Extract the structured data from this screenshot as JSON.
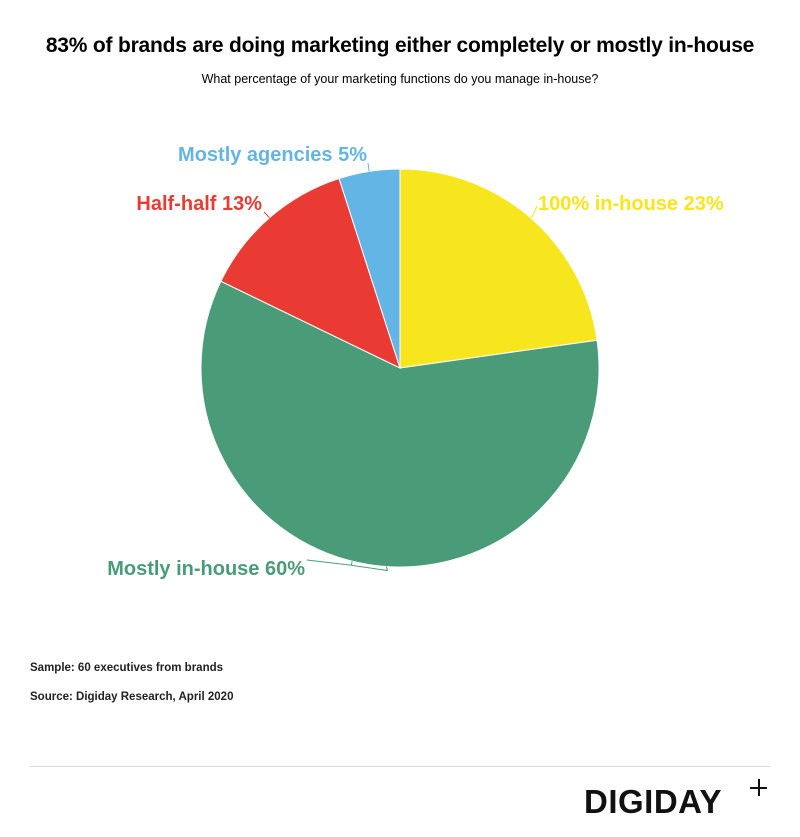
{
  "header": {
    "title": "83% of brands are doing marketing either completely or mostly in-house",
    "subtitle": "What percentage of your marketing functions do you manage in-house?"
  },
  "chart_data": {
    "type": "pie",
    "title": "83% of brands are doing marketing either completely or mostly in-house",
    "subtitle": "What percentage of your marketing functions do you manage in-house?",
    "slices": [
      {
        "label": "100% in-house 23%",
        "name": "100% in-house",
        "value": 23,
        "color": "#f7e51d"
      },
      {
        "label": "Mostly in-house 60%",
        "name": "Mostly in-house",
        "value": 60,
        "color": "#4a9c78"
      },
      {
        "label": "Half-half 13%",
        "name": "Half-half",
        "value": 13,
        "color": "#e93b33"
      },
      {
        "label": "Mostly agencies 5%",
        "name": "Mostly agencies",
        "value": 5,
        "color": "#63b5e5"
      }
    ]
  },
  "notes": {
    "sample": "Sample: 60 executives from brands",
    "source": "Source: Digiday Research, April 2020"
  },
  "brand": {
    "logo_text": "DIGIDAY"
  }
}
